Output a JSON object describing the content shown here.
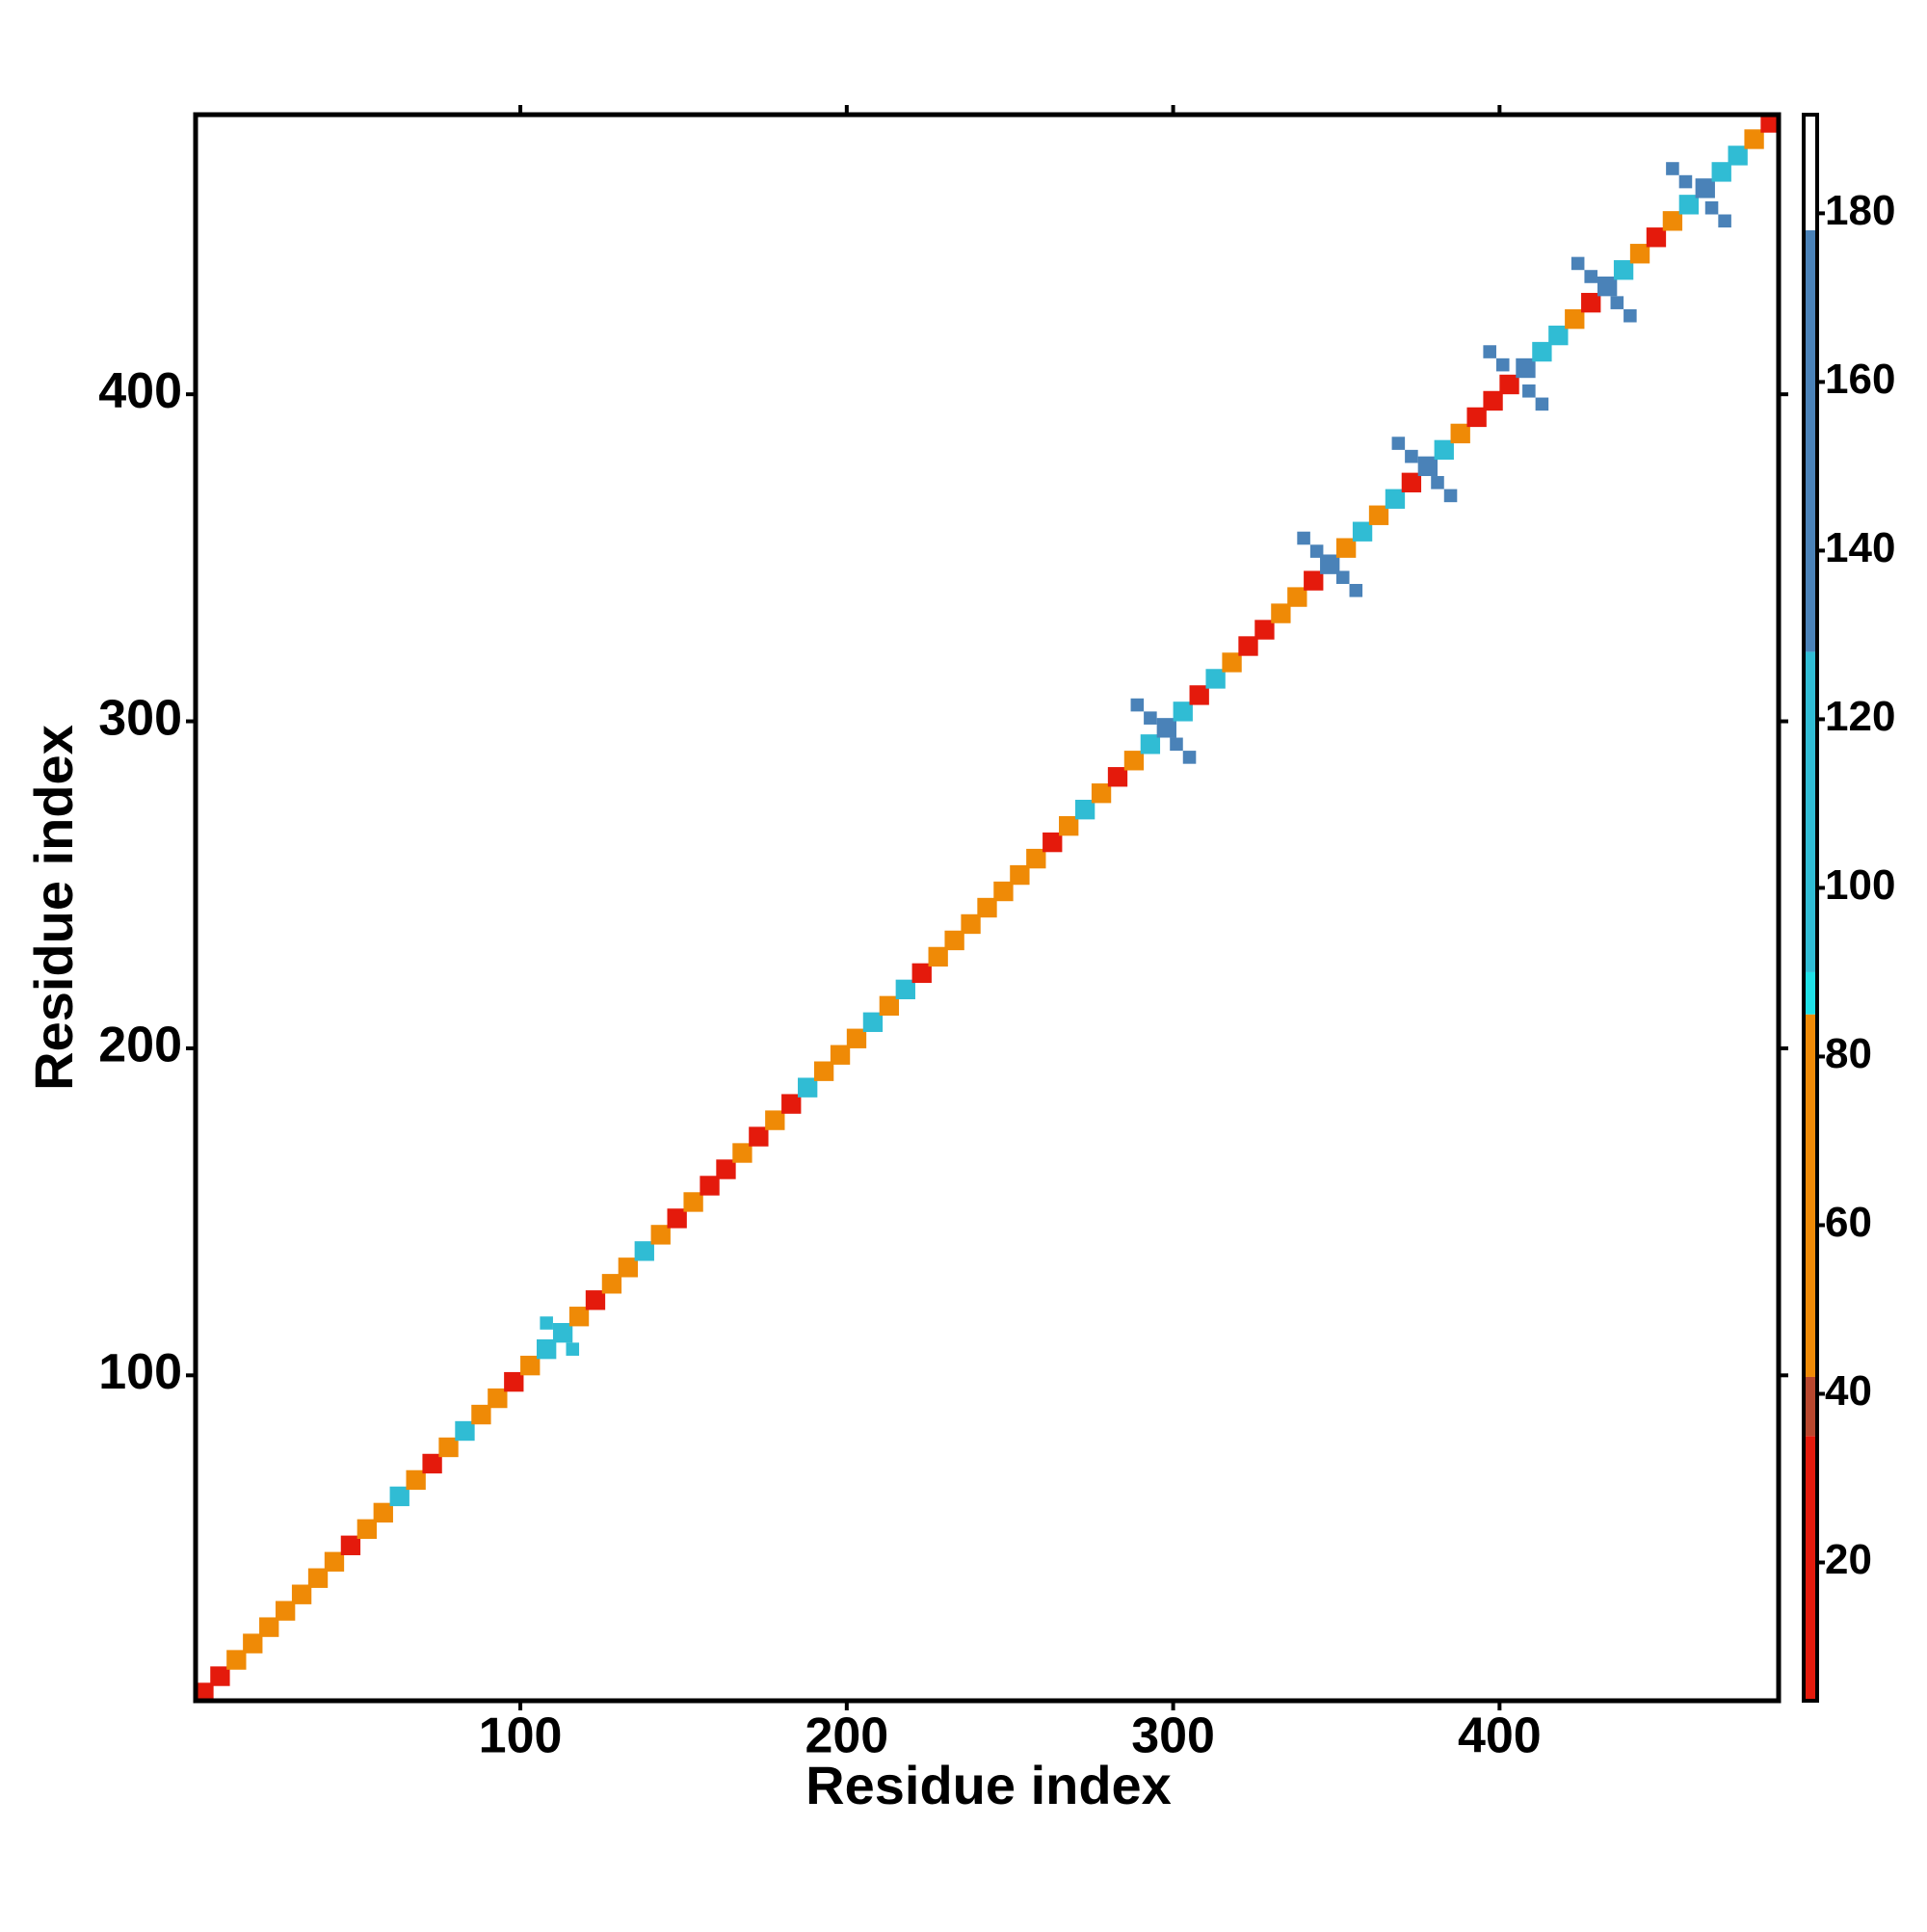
{
  "chart_data": {
    "type": "heatmap",
    "x_label": "Residue index",
    "y_label": "Residue index",
    "xlim": [
      0.5,
      485.5
    ],
    "ylim": [
      0.5,
      485.5
    ],
    "xticks": [
      100,
      200,
      300,
      400
    ],
    "yticks": [
      100,
      200,
      300,
      400
    ],
    "colorbar_lim": [
      3.6,
      191.7
    ],
    "colorbar_ticks": [
      20,
      40,
      60,
      80,
      100,
      120,
      140,
      160,
      180
    ],
    "colormap": {
      "bounds": [
        3.6,
        35,
        42,
        85,
        90,
        128,
        178,
        191.7
      ],
      "colors": [
        "#e41a0c",
        "#b8472e",
        "#ef8a06",
        "#1fe0e6",
        "#30bcd4",
        "#4a82b8",
        "#ffffff"
      ]
    },
    "x": [
      3,
      8,
      13,
      18,
      23,
      28,
      33,
      38,
      43,
      48,
      53,
      58,
      63,
      68,
      73,
      78,
      83,
      88,
      93,
      98,
      103,
      108,
      113,
      118,
      123,
      128,
      133,
      138,
      143,
      148,
      153,
      158,
      163,
      168,
      173,
      178,
      183,
      188,
      193,
      198,
      203,
      208,
      213,
      218,
      223,
      228,
      233,
      238,
      243,
      248,
      253,
      258,
      263,
      268,
      273,
      278,
      283,
      288,
      293,
      298,
      303,
      308,
      313,
      318,
      323,
      328,
      333,
      338,
      343,
      348,
      353,
      358,
      363,
      368,
      373,
      378,
      383,
      388,
      393,
      398,
      403,
      408,
      413,
      418,
      423,
      428,
      433,
      438,
      443,
      448,
      453,
      458,
      463,
      468,
      473,
      478,
      483,
      301,
      293,
      305,
      289,
      352,
      344,
      356,
      340,
      381,
      373,
      385,
      369,
      409,
      401,
      413,
      397,
      436,
      428,
      440,
      424,
      465,
      457,
      469,
      453,
      116,
      108
    ],
    "y": [
      3,
      8,
      13,
      18,
      23,
      28,
      33,
      38,
      43,
      48,
      53,
      58,
      63,
      68,
      73,
      78,
      83,
      88,
      93,
      98,
      103,
      108,
      113,
      118,
      123,
      128,
      133,
      138,
      143,
      148,
      153,
      158,
      163,
      168,
      173,
      178,
      183,
      188,
      193,
      198,
      203,
      208,
      213,
      218,
      223,
      228,
      233,
      238,
      243,
      248,
      253,
      258,
      263,
      268,
      273,
      278,
      283,
      288,
      293,
      298,
      303,
      308,
      313,
      318,
      323,
      328,
      333,
      338,
      343,
      348,
      353,
      358,
      363,
      368,
      373,
      378,
      383,
      388,
      393,
      398,
      403,
      408,
      413,
      418,
      423,
      428,
      433,
      438,
      443,
      448,
      453,
      458,
      463,
      468,
      473,
      478,
      483,
      293,
      301,
      289,
      305,
      344,
      352,
      340,
      356,
      373,
      381,
      369,
      385,
      401,
      409,
      397,
      413,
      428,
      436,
      424,
      440,
      457,
      465,
      453,
      469,
      108,
      116
    ],
    "values": [
      20,
      25,
      65,
      65,
      70,
      65,
      60,
      70,
      65,
      30,
      65,
      70,
      100,
      65,
      30,
      65,
      100,
      65,
      60,
      25,
      65,
      100,
      110,
      65,
      30,
      65,
      70,
      100,
      65,
      25,
      65,
      30,
      25,
      65,
      30,
      70,
      25,
      100,
      65,
      65,
      65,
      100,
      65,
      110,
      25,
      65,
      65,
      65,
      65,
      65,
      65,
      65,
      25,
      70,
      100,
      65,
      25,
      65,
      110,
      140,
      110,
      25,
      100,
      65,
      25,
      30,
      65,
      65,
      25,
      140,
      65,
      110,
      65,
      100,
      25,
      140,
      110,
      65,
      25,
      30,
      25,
      140,
      100,
      110,
      65,
      25,
      140,
      100,
      65,
      25,
      65,
      100,
      140,
      110,
      100,
      65,
      30,
      140,
      140,
      140,
      140,
      140,
      140,
      140,
      140,
      140,
      140,
      140,
      140,
      140,
      140,
      140,
      140,
      140,
      140,
      140,
      140,
      140,
      140,
      140,
      140,
      105,
      105
    ]
  }
}
